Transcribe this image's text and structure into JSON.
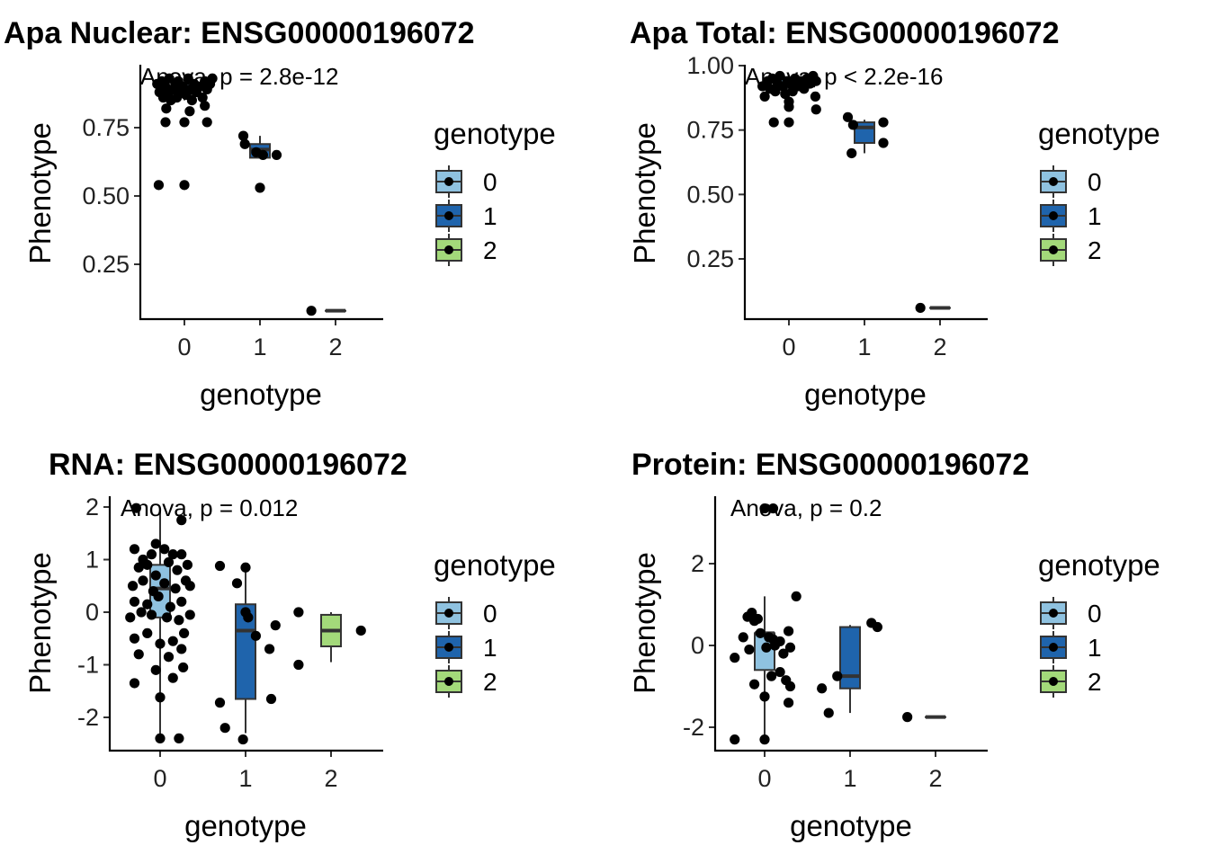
{
  "figure": {
    "legend": {
      "title": "genotype",
      "labels": [
        "0",
        "1",
        "2"
      ]
    },
    "colors": {
      "0": "#8fc2e0",
      "1": "#1f64ac",
      "2": "#a3d97a"
    }
  },
  "chart_data": [
    {
      "type": "box",
      "title": "Apa Nuclear: ENSG00000196072",
      "xlabel": "genotype",
      "ylabel": "Phenotype",
      "annotation": "Anova, p = 2.8e-12",
      "categories": [
        "0",
        "1",
        "2"
      ],
      "ylim": [
        0.06,
        0.95
      ],
      "yticks": [
        0.25,
        0.5,
        0.75
      ],
      "ytick_labels": [
        "0.25",
        "0.50",
        "0.75"
      ],
      "legend": "right",
      "boxes": [
        {
          "group": "0",
          "q1": 0.87,
          "median": 0.89,
          "q3": 0.91,
          "lower": 0.85,
          "upper": 0.94
        },
        {
          "group": "1",
          "q1": 0.64,
          "median": 0.67,
          "q3": 0.69,
          "lower": 0.64,
          "upper": 0.72
        },
        {
          "group": "2",
          "q1": 0.08,
          "median": 0.08,
          "q3": 0.08,
          "lower": 0.08,
          "upper": 0.08
        }
      ],
      "points": [
        {
          "x": -0.36,
          "y": 0.91
        },
        {
          "x": -0.33,
          "y": 0.88
        },
        {
          "x": -0.3,
          "y": 0.92
        },
        {
          "x": -0.28,
          "y": 0.86
        },
        {
          "x": -0.25,
          "y": 0.9
        },
        {
          "x": -0.22,
          "y": 0.87
        },
        {
          "x": -0.2,
          "y": 0.93
        },
        {
          "x": -0.18,
          "y": 0.85
        },
        {
          "x": -0.15,
          "y": 0.89
        },
        {
          "x": -0.12,
          "y": 0.91
        },
        {
          "x": -0.1,
          "y": 0.86
        },
        {
          "x": -0.08,
          "y": 0.92
        },
        {
          "x": -0.05,
          "y": 0.88
        },
        {
          "x": -0.02,
          "y": 0.9
        },
        {
          "x": 0.02,
          "y": 0.87
        },
        {
          "x": 0.05,
          "y": 0.93
        },
        {
          "x": 0.08,
          "y": 0.89
        },
        {
          "x": 0.1,
          "y": 0.85
        },
        {
          "x": 0.13,
          "y": 0.91
        },
        {
          "x": 0.16,
          "y": 0.88
        },
        {
          "x": 0.2,
          "y": 0.9
        },
        {
          "x": 0.24,
          "y": 0.86
        },
        {
          "x": 0.27,
          "y": 0.92
        },
        {
          "x": 0.3,
          "y": 0.89
        },
        {
          "x": 0.34,
          "y": 0.91
        },
        {
          "x": 0.37,
          "y": 0.93
        },
        {
          "x": -0.24,
          "y": 0.82
        },
        {
          "x": 0.07,
          "y": 0.81
        },
        {
          "x": 0.27,
          "y": 0.83
        },
        {
          "x": -0.25,
          "y": 0.77
        },
        {
          "x": 0.0,
          "y": 0.77
        },
        {
          "x": 0.3,
          "y": 0.77
        },
        {
          "x": -0.34,
          "y": 0.54
        },
        {
          "x": 0.0,
          "y": 0.54
        },
        {
          "x": 0.78,
          "y": 0.72
        },
        {
          "x": 0.8,
          "y": 0.69
        },
        {
          "x": 0.95,
          "y": 0.66
        },
        {
          "x": 1.04,
          "y": 0.65
        },
        {
          "x": 1.22,
          "y": 0.65
        },
        {
          "x": 1.0,
          "y": 0.53
        },
        {
          "x": 1.68,
          "y": 0.08
        }
      ]
    },
    {
      "type": "box",
      "title": "Apa Total: ENSG00000196072",
      "xlabel": "genotype",
      "ylabel": "Phenotype",
      "annotation": "Anova, p < 2.2e-16",
      "categories": [
        "0",
        "1",
        "2"
      ],
      "ylim": [
        0.05,
        1.0
      ],
      "yticks": [
        0.25,
        0.5,
        0.75,
        1.0
      ],
      "ytick_labels": [
        "0.25",
        "0.50",
        "0.75",
        "1.00"
      ],
      "legend": "right",
      "boxes": [
        {
          "group": "0",
          "q1": 0.91,
          "median": 0.93,
          "q3": 0.95,
          "lower": 0.88,
          "upper": 0.96
        },
        {
          "group": "1",
          "q1": 0.7,
          "median": 0.76,
          "q3": 0.78,
          "lower": 0.66,
          "upper": 0.79
        },
        {
          "group": "2",
          "q1": 0.06,
          "median": 0.06,
          "q3": 0.06,
          "lower": 0.06,
          "upper": 0.06
        }
      ],
      "points": [
        {
          "x": -0.35,
          "y": 0.92
        },
        {
          "x": -0.32,
          "y": 0.88
        },
        {
          "x": -0.28,
          "y": 0.94
        },
        {
          "x": -0.25,
          "y": 0.91
        },
        {
          "x": -0.22,
          "y": 0.95
        },
        {
          "x": -0.18,
          "y": 0.9
        },
        {
          "x": -0.15,
          "y": 0.93
        },
        {
          "x": -0.12,
          "y": 0.96
        },
        {
          "x": -0.08,
          "y": 0.92
        },
        {
          "x": -0.05,
          "y": 0.89
        },
        {
          "x": -0.02,
          "y": 0.94
        },
        {
          "x": 0.02,
          "y": 0.93
        },
        {
          "x": 0.05,
          "y": 0.9
        },
        {
          "x": 0.08,
          "y": 0.95
        },
        {
          "x": 0.12,
          "y": 0.92
        },
        {
          "x": 0.16,
          "y": 0.94
        },
        {
          "x": 0.2,
          "y": 0.91
        },
        {
          "x": 0.24,
          "y": 0.95
        },
        {
          "x": 0.28,
          "y": 0.93
        },
        {
          "x": 0.32,
          "y": 0.96
        },
        {
          "x": 0.36,
          "y": 0.94
        },
        {
          "x": 0.35,
          "y": 0.88
        },
        {
          "x": 0.0,
          "y": 0.86
        },
        {
          "x": 0.0,
          "y": 0.84
        },
        {
          "x": 0.36,
          "y": 0.83
        },
        {
          "x": -0.2,
          "y": 0.78
        },
        {
          "x": 0.0,
          "y": 0.78
        },
        {
          "x": 0.78,
          "y": 0.8
        },
        {
          "x": 0.85,
          "y": 0.77
        },
        {
          "x": 0.83,
          "y": 0.66
        },
        {
          "x": 1.25,
          "y": 0.78
        },
        {
          "x": 1.25,
          "y": 0.7
        },
        {
          "x": 1.74,
          "y": 0.06
        }
      ]
    },
    {
      "type": "box",
      "title": "RNA: ENSG00000196072",
      "xlabel": "genotype",
      "ylabel": "Phenotype",
      "annotation": "Anova, p = 0.012",
      "categories": [
        "0",
        "1",
        "2"
      ],
      "ylim": [
        -2.62,
        2.0
      ],
      "yticks": [
        -2,
        -1,
        0,
        1,
        2
      ],
      "ytick_labels": [
        "-2",
        "-1",
        "0",
        "1",
        "2"
      ],
      "legend": "right",
      "boxes": [
        {
          "group": "0",
          "q1": -0.1,
          "median": 0.45,
          "q3": 0.9,
          "lower": -2.4,
          "upper": 1.95
        },
        {
          "group": "1",
          "q1": -1.65,
          "median": -0.35,
          "q3": 0.15,
          "lower": -2.3,
          "upper": 0.85
        },
        {
          "group": "2",
          "q1": -0.65,
          "median": -0.35,
          "q3": -0.05,
          "lower": -0.95,
          "upper": 0.0
        }
      ],
      "points": [
        {
          "x": -0.3,
          "y": 1.2
        },
        {
          "x": -0.2,
          "y": 1.0
        },
        {
          "x": -0.1,
          "y": 1.1
        },
        {
          "x": 0.05,
          "y": 1.2
        },
        {
          "x": 0.15,
          "y": 1.1
        },
        {
          "x": 0.25,
          "y": 1.1
        },
        {
          "x": -0.25,
          "y": 0.85
        },
        {
          "x": -0.15,
          "y": 0.9
        },
        {
          "x": -0.05,
          "y": 0.7
        },
        {
          "x": 0.1,
          "y": 0.95
        },
        {
          "x": 0.2,
          "y": 0.8
        },
        {
          "x": 0.32,
          "y": 0.9
        },
        {
          "x": -0.32,
          "y": 0.5
        },
        {
          "x": -0.2,
          "y": 0.6
        },
        {
          "x": -0.08,
          "y": 0.4
        },
        {
          "x": 0.05,
          "y": 0.55
        },
        {
          "x": 0.18,
          "y": 0.45
        },
        {
          "x": 0.3,
          "y": 0.6
        },
        {
          "x": 0.35,
          "y": 0.5
        },
        {
          "x": -0.3,
          "y": 0.2
        },
        {
          "x": -0.15,
          "y": 0.15
        },
        {
          "x": -0.02,
          "y": 0.3
        },
        {
          "x": 0.12,
          "y": 0.1
        },
        {
          "x": 0.25,
          "y": 0.2
        },
        {
          "x": -0.35,
          "y": -0.1
        },
        {
          "x": -0.22,
          "y": 0.0
        },
        {
          "x": -0.1,
          "y": -0.05
        },
        {
          "x": 0.08,
          "y": -0.1
        },
        {
          "x": 0.22,
          "y": -0.15
        },
        {
          "x": 0.35,
          "y": -0.05
        },
        {
          "x": -0.3,
          "y": -0.5
        },
        {
          "x": -0.15,
          "y": -0.4
        },
        {
          "x": 0.0,
          "y": -0.6
        },
        {
          "x": 0.15,
          "y": -0.55
        },
        {
          "x": 0.28,
          "y": -0.4
        },
        {
          "x": -0.25,
          "y": -0.8
        },
        {
          "x": 0.1,
          "y": -0.85
        },
        {
          "x": 0.25,
          "y": -0.7
        },
        {
          "x": -0.05,
          "y": -1.1
        },
        {
          "x": 0.27,
          "y": -1.05
        },
        {
          "x": -0.3,
          "y": -1.35
        },
        {
          "x": 0.15,
          "y": -1.25
        },
        {
          "x": 0.0,
          "y": -1.62
        },
        {
          "x": -0.28,
          "y": 1.98
        },
        {
          "x": 0.25,
          "y": 1.75
        },
        {
          "x": 0.0,
          "y": -2.4
        },
        {
          "x": 0.22,
          "y": -2.4
        },
        {
          "x": -0.05,
          "y": 1.3
        },
        {
          "x": 0.7,
          "y": 0.88
        },
        {
          "x": 1.0,
          "y": 0.85
        },
        {
          "x": 0.9,
          "y": 0.55
        },
        {
          "x": 1.0,
          "y": 0.0
        },
        {
          "x": 1.03,
          "y": -0.1
        },
        {
          "x": 1.12,
          "y": -0.45
        },
        {
          "x": 1.28,
          "y": -0.7
        },
        {
          "x": 1.3,
          "y": -1.65
        },
        {
          "x": 0.7,
          "y": -1.72
        },
        {
          "x": 0.76,
          "y": -2.2
        },
        {
          "x": 0.97,
          "y": -2.42
        },
        {
          "x": 1.62,
          "y": -1.0
        },
        {
          "x": 1.35,
          "y": -0.25
        },
        {
          "x": 1.62,
          "y": 0.0
        },
        {
          "x": 2.35,
          "y": -0.35
        }
      ]
    },
    {
      "type": "box",
      "title": "Protein: ENSG00000196072",
      "xlabel": "genotype",
      "ylabel": "Phenotype",
      "annotation": "Anova, p = 0.2",
      "categories": [
        "0",
        "1",
        "2"
      ],
      "ylim": [
        -2.55,
        3.65
      ],
      "yticks": [
        -2,
        0,
        2
      ],
      "ytick_labels": [
        "-2",
        "0",
        "2"
      ],
      "legend": "right",
      "boxes": [
        {
          "group": "0",
          "q1": -0.6,
          "median": 0.3,
          "q3": 0.3,
          "lower": -2.3,
          "upper": 1.2
        },
        {
          "group": "1",
          "q1": -1.05,
          "median": -0.75,
          "q3": 0.45,
          "lower": -1.65,
          "upper": 0.5
        },
        {
          "group": "2",
          "q1": -1.75,
          "median": -1.75,
          "q3": -1.75,
          "lower": -1.75,
          "upper": -1.75
        }
      ],
      "points": [
        {
          "x": -0.2,
          "y": 0.7
        },
        {
          "x": -0.15,
          "y": 0.8
        },
        {
          "x": -0.12,
          "y": 0.6
        },
        {
          "x": -0.08,
          "y": 0.65
        },
        {
          "x": -0.25,
          "y": 0.2
        },
        {
          "x": -0.05,
          "y": 0.3
        },
        {
          "x": 0.05,
          "y": 0.2
        },
        {
          "x": 0.1,
          "y": 0.15
        },
        {
          "x": 0.18,
          "y": 0.1
        },
        {
          "x": 0.28,
          "y": 0.35
        },
        {
          "x": -0.35,
          "y": -0.3
        },
        {
          "x": -0.18,
          "y": -0.1
        },
        {
          "x": 0.02,
          "y": -0.05
        },
        {
          "x": 0.12,
          "y": 0.0
        },
        {
          "x": 0.22,
          "y": -0.2
        },
        {
          "x": 0.3,
          "y": -0.05
        },
        {
          "x": -0.12,
          "y": -0.95
        },
        {
          "x": 0.08,
          "y": -0.75
        },
        {
          "x": 0.18,
          "y": -0.65
        },
        {
          "x": 0.25,
          "y": -0.85
        },
        {
          "x": 0.3,
          "y": -1.0
        },
        {
          "x": 0.28,
          "y": -1.4
        },
        {
          "x": 0.0,
          "y": -1.25
        },
        {
          "x": 0.37,
          "y": 1.2
        },
        {
          "x": -0.35,
          "y": -2.3
        },
        {
          "x": 0.0,
          "y": -2.3
        },
        {
          "x": 0.0,
          "y": 3.35
        },
        {
          "x": 0.1,
          "y": 3.35
        },
        {
          "x": 0.67,
          "y": -1.05
        },
        {
          "x": 0.75,
          "y": -1.65
        },
        {
          "x": 0.85,
          "y": -0.75
        },
        {
          "x": 1.25,
          "y": 0.55
        },
        {
          "x": 1.32,
          "y": 0.45
        },
        {
          "x": 1.67,
          "y": -1.75
        }
      ]
    }
  ]
}
